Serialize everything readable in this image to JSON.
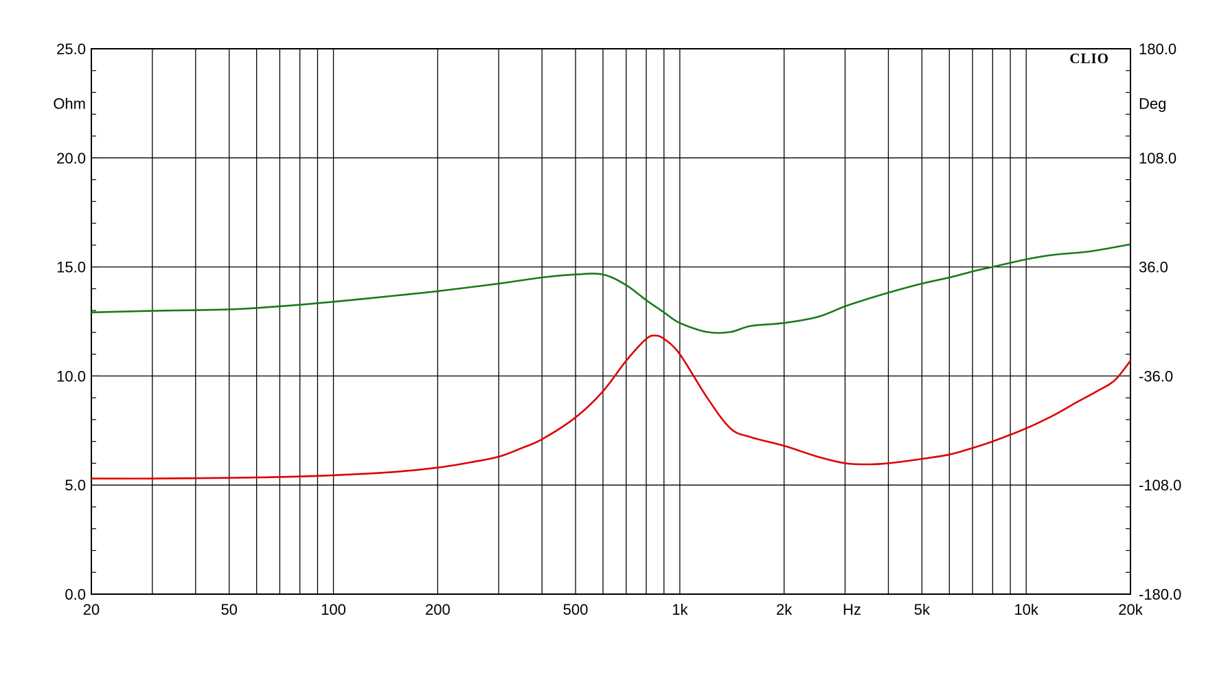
{
  "chart_data": {
    "type": "line",
    "brand": "CLIO",
    "x_scale": "log",
    "xlim": [
      20,
      20000
    ],
    "x_unit_label": "Hz",
    "x_tick_labels": [
      {
        "value": 20,
        "label": "20"
      },
      {
        "value": 50,
        "label": "50"
      },
      {
        "value": 100,
        "label": "100"
      },
      {
        "value": 200,
        "label": "200"
      },
      {
        "value": 500,
        "label": "500"
      },
      {
        "value": 1000,
        "label": "1k"
      },
      {
        "value": 2000,
        "label": "2k"
      },
      {
        "value": 5000,
        "label": "5k"
      },
      {
        "value": 10000,
        "label": "10k"
      },
      {
        "value": 20000,
        "label": "20k"
      }
    ],
    "x_unit_position_value": 3000,
    "x_gridlines": [
      20,
      30,
      40,
      50,
      60,
      70,
      80,
      90,
      100,
      200,
      300,
      400,
      500,
      600,
      700,
      800,
      900,
      1000,
      2000,
      3000,
      4000,
      5000,
      6000,
      7000,
      8000,
      9000,
      10000,
      20000
    ],
    "left_axis": {
      "unit": "Ohm",
      "ylim": [
        0,
        25
      ],
      "tick_labels": [
        {
          "value": 0,
          "label": "0.0"
        },
        {
          "value": 5,
          "label": "5.0"
        },
        {
          "value": 10,
          "label": "10.0"
        },
        {
          "value": 15,
          "label": "15.0"
        },
        {
          "value": 20,
          "label": "20.0"
        },
        {
          "value": 25,
          "label": "25.0"
        }
      ],
      "unit_value": 22.5
    },
    "right_axis": {
      "unit": "Deg",
      "ylim": [
        -180,
        180
      ],
      "tick_labels": [
        {
          "value": -180,
          "label": "-180.0"
        },
        {
          "value": -108,
          "label": "-108.0"
        },
        {
          "value": -36,
          "label": "-36.0"
        },
        {
          "value": 36,
          "label": "36.0"
        },
        {
          "value": 108,
          "label": "108.0"
        },
        {
          "value": 180,
          "label": "180.0"
        }
      ],
      "unit_value": 144
    },
    "grid": true,
    "series": [
      {
        "id": "impedance",
        "axis": "left",
        "color": "#dd0000",
        "points": [
          [
            20,
            5.3
          ],
          [
            30,
            5.3
          ],
          [
            50,
            5.33
          ],
          [
            70,
            5.37
          ],
          [
            100,
            5.45
          ],
          [
            150,
            5.6
          ],
          [
            200,
            5.8
          ],
          [
            250,
            6.05
          ],
          [
            300,
            6.3
          ],
          [
            350,
            6.7
          ],
          [
            400,
            7.1
          ],
          [
            500,
            8.1
          ],
          [
            600,
            9.3
          ],
          [
            700,
            10.7
          ],
          [
            800,
            11.7
          ],
          [
            850,
            11.85
          ],
          [
            900,
            11.7
          ],
          [
            1000,
            11.0
          ],
          [
            1200,
            9.0
          ],
          [
            1400,
            7.6
          ],
          [
            1600,
            7.2
          ],
          [
            2000,
            6.8
          ],
          [
            2500,
            6.3
          ],
          [
            3000,
            6.0
          ],
          [
            3500,
            5.95
          ],
          [
            4000,
            6.0
          ],
          [
            5000,
            6.2
          ],
          [
            6000,
            6.4
          ],
          [
            7000,
            6.7
          ],
          [
            8000,
            7.0
          ],
          [
            10000,
            7.6
          ],
          [
            12000,
            8.2
          ],
          [
            14000,
            8.8
          ],
          [
            16000,
            9.3
          ],
          [
            18000,
            9.8
          ],
          [
            20000,
            10.7
          ]
        ]
      },
      {
        "id": "phase",
        "axis": "right",
        "color": "#1a7a1a",
        "points": [
          [
            20,
            6
          ],
          [
            30,
            7
          ],
          [
            50,
            8
          ],
          [
            70,
            10
          ],
          [
            100,
            13
          ],
          [
            150,
            17
          ],
          [
            200,
            20
          ],
          [
            300,
            25
          ],
          [
            400,
            29
          ],
          [
            500,
            31
          ],
          [
            600,
            31
          ],
          [
            700,
            24
          ],
          [
            800,
            14
          ],
          [
            900,
            6
          ],
          [
            1000,
            -1
          ],
          [
            1200,
            -7
          ],
          [
            1400,
            -7
          ],
          [
            1600,
            -3
          ],
          [
            2000,
            -1
          ],
          [
            2500,
            3
          ],
          [
            3000,
            10
          ],
          [
            3500,
            15
          ],
          [
            4000,
            19
          ],
          [
            5000,
            25
          ],
          [
            6000,
            29
          ],
          [
            7000,
            33
          ],
          [
            8000,
            36
          ],
          [
            10000,
            41
          ],
          [
            12000,
            44
          ],
          [
            15000,
            46
          ],
          [
            18000,
            49
          ],
          [
            20000,
            51
          ]
        ]
      }
    ]
  }
}
